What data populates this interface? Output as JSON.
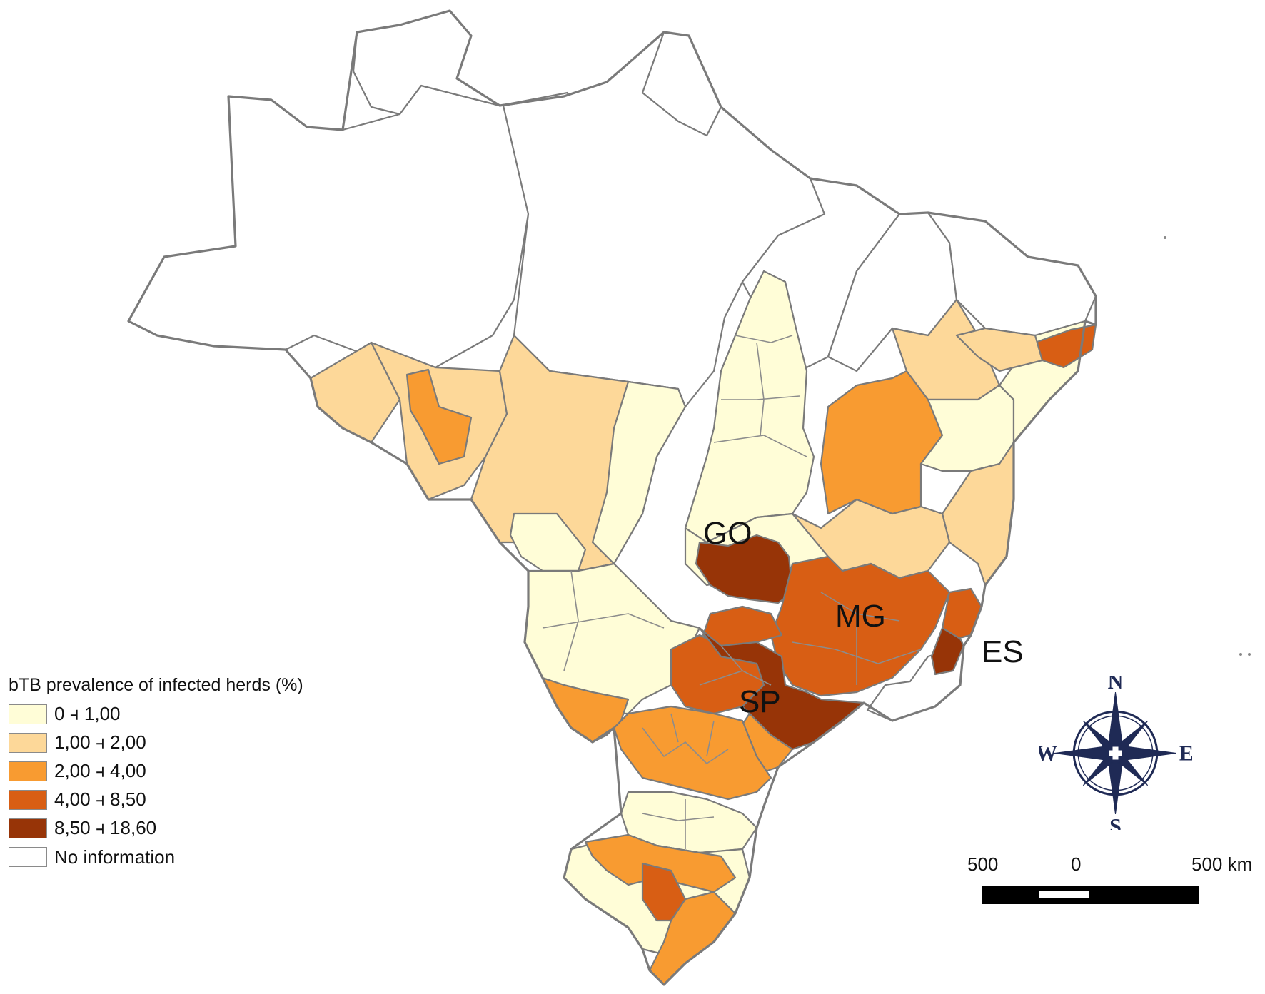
{
  "map": {
    "state_labels": {
      "go": "GO",
      "mg": "MG",
      "es": "ES",
      "sp": "SP"
    }
  },
  "legend": {
    "title": "bTB prevalence of infected herds (%)",
    "items": [
      {
        "label": "0 ⫞ 1,00",
        "color": "#fffdd7"
      },
      {
        "label": "1,00 ⫞ 2,00",
        "color": "#fdd899"
      },
      {
        "label": "2,00 ⫞ 4,00",
        "color": "#f89b31"
      },
      {
        "label": "4,00 ⫞ 8,50",
        "color": "#d85e14"
      },
      {
        "label": "8,50 ⫞ 18,60",
        "color": "#973407"
      },
      {
        "label": "No information",
        "color": "#ffffff"
      }
    ]
  },
  "compass": {
    "n": "N",
    "s": "S",
    "e": "E",
    "w": "W",
    "color": "#1f2a55"
  },
  "scale_bar": {
    "left_label": "500",
    "center_label": "0",
    "right_label": "500 km"
  }
}
